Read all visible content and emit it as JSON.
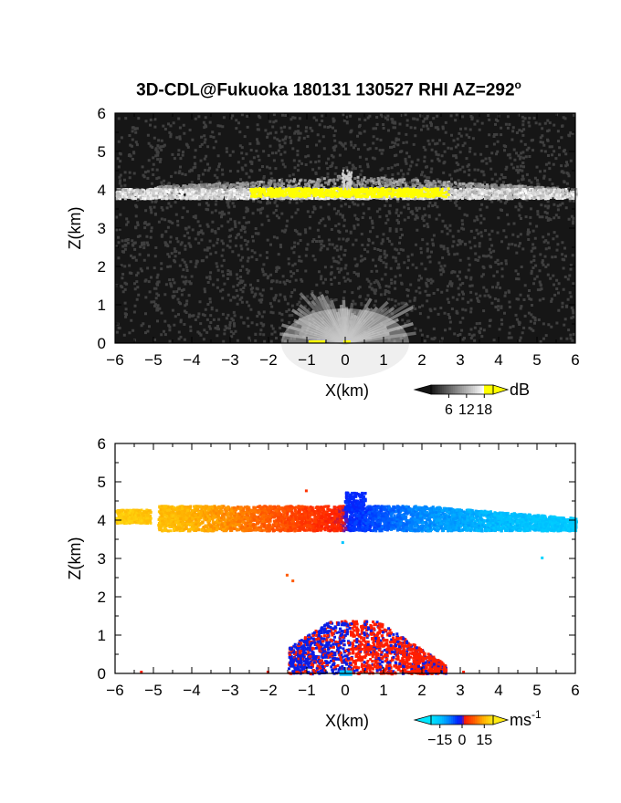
{
  "chart_data": [
    {
      "type": "heatmap",
      "panel": "reflectivity",
      "title": "3D-CDL@Fukuoka 180131 130527 RHI AZ=292",
      "title_degree": "o",
      "xlabel": "X(km)",
      "ylabel": "Z(km)",
      "xlim": [
        -6,
        6
      ],
      "ylim": [
        0,
        6
      ],
      "xticks": [
        "-6",
        "-5",
        "-4",
        "-3",
        "-2",
        "-1",
        "0",
        "1",
        "2",
        "3",
        "4",
        "5",
        "6"
      ],
      "yticks": [
        "0",
        "1",
        "2",
        "3",
        "4",
        "5",
        "6"
      ],
      "colorbar": {
        "unit": "dB",
        "ticks": [
          "6",
          "12",
          "18"
        ],
        "range": [
          0,
          21
        ]
      },
      "background_level_db": 4,
      "layer": {
        "base_km": 3.8,
        "top_km": 4.05,
        "x_extent_km": [
          -6,
          6
        ],
        "peak_db": 19
      },
      "near_field_fan": {
        "x_extent_km": [
          -1.6,
          1.6
        ],
        "top_km": 1.2
      },
      "colors": {
        "background": "#161616",
        "high": "#ffff00"
      }
    },
    {
      "type": "heatmap",
      "panel": "doppler_velocity",
      "xlabel": "X(km)",
      "ylabel": "Z(km)",
      "xlim": [
        -6,
        6
      ],
      "ylim": [
        0,
        6
      ],
      "xticks": [
        "-6",
        "-5",
        "-4",
        "-3",
        "-2",
        "-1",
        "0",
        "1",
        "2",
        "3",
        "4",
        "5",
        "6"
      ],
      "yticks": [
        "0",
        "1",
        "2",
        "3",
        "4",
        "5",
        "6"
      ],
      "colorbar": {
        "unit": "ms",
        "unit_exp": "-1",
        "ticks": [
          "−15",
          "0",
          "15"
        ],
        "range": [
          -21,
          21
        ]
      },
      "layer": {
        "x_extent_km": [
          -6,
          6
        ],
        "base_km": 3.75,
        "top_km": 4.4,
        "velocity_at_x": [
          {
            "x": -6,
            "v": 18
          },
          {
            "x": -4,
            "v": 15
          },
          {
            "x": -2,
            "v": 8
          },
          {
            "x": -0.1,
            "v": 2
          },
          {
            "x": 0.1,
            "v": -3
          },
          {
            "x": 2,
            "v": -10
          },
          {
            "x": 4,
            "v": -14
          },
          {
            "x": 6,
            "v": -16
          }
        ]
      },
      "near_field": {
        "x_extent_km": [
          -1.5,
          2.6
        ],
        "top_km": 1.4,
        "velocities": [
          -4,
          4
        ]
      },
      "colors": {
        "negative": "#0033ff",
        "positive": "#ff2000",
        "near_zero": "#00c0ff"
      }
    }
  ]
}
